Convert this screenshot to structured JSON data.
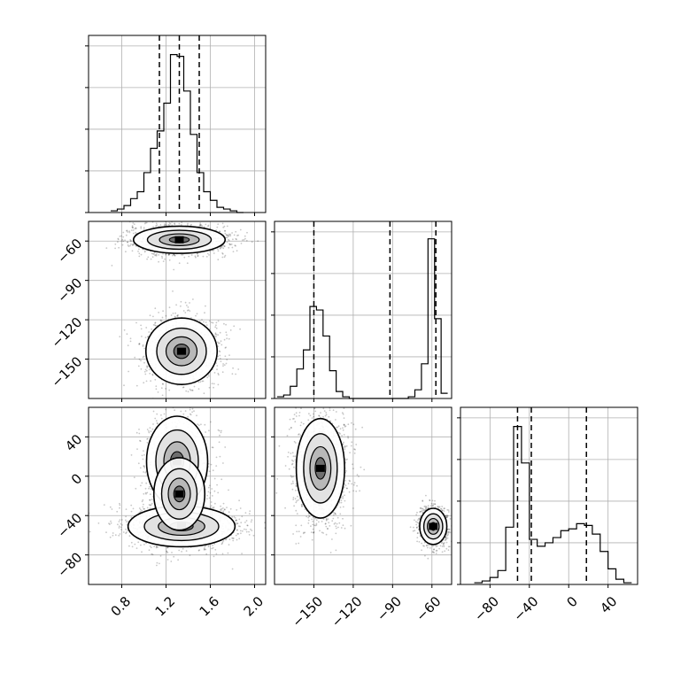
{
  "chart_data": {
    "type": "corner",
    "title": "",
    "parameters": [
      {
        "name": "",
        "range": [
          0.5,
          2.1
        ],
        "ticks": [
          0.8,
          1.2,
          1.6,
          2.0
        ],
        "tick_labels": [
          "0.8",
          "1.2",
          "1.6",
          "2.0"
        ]
      },
      {
        "name": "",
        "range": [
          -180,
          -45
        ],
        "ticks": [
          -150,
          -120,
          -90,
          -60
        ],
        "tick_labels": [
          "−150",
          "−120",
          "−90",
          "−60"
        ]
      },
      {
        "name": "",
        "range": [
          -110,
          70
        ],
        "ticks": [
          -80,
          -40,
          0,
          40
        ],
        "tick_labels": [
          "−80",
          "−40",
          "0",
          "40"
        ]
      }
    ],
    "grid": true,
    "diagonal": [
      {
        "param": 0,
        "quantiles": [
          1.14,
          1.32,
          1.5
        ],
        "bin_edges": [
          0.7,
          0.76,
          0.82,
          0.88,
          0.94,
          1.0,
          1.06,
          1.12,
          1.18,
          1.24,
          1.3,
          1.36,
          1.42,
          1.48,
          1.54,
          1.6,
          1.66,
          1.72,
          1.78,
          1.84,
          1.9
        ],
        "counts": [
          0.01,
          0.02,
          0.04,
          0.08,
          0.12,
          0.23,
          0.37,
          0.47,
          0.63,
          0.91,
          0.9,
          0.7,
          0.45,
          0.23,
          0.12,
          0.07,
          0.03,
          0.02,
          0.01,
          0.0
        ]
      },
      {
        "param": 1,
        "quantiles": [
          -150,
          -92,
          -57
        ],
        "bin_edges": [
          -178,
          -173,
          -168,
          -163,
          -158,
          -153,
          -148,
          -143,
          -138,
          -133,
          -128,
          -123,
          -118,
          -113,
          -108,
          -103,
          -98,
          -93,
          -88,
          -83,
          -78,
          -73,
          -68,
          -63,
          -58,
          -53,
          -48
        ],
        "counts": [
          0.01,
          0.02,
          0.07,
          0.17,
          0.28,
          0.53,
          0.51,
          0.36,
          0.16,
          0.04,
          0.01,
          0,
          0,
          0,
          0,
          0,
          0,
          0,
          0,
          0,
          0.01,
          0.05,
          0.2,
          0.92,
          0.46,
          0.03
        ]
      },
      {
        "param": 2,
        "quantiles": [
          -52,
          -38,
          18
        ],
        "bin_edges": [
          -96,
          -88,
          -80,
          -72,
          -64,
          -56,
          -48,
          -40,
          -32,
          -24,
          -16,
          -8,
          0,
          8,
          16,
          24,
          32,
          40,
          48,
          56,
          64
        ],
        "counts": [
          0.01,
          0.02,
          0.04,
          0.08,
          0.33,
          0.91,
          0.7,
          0.26,
          0.22,
          0.24,
          0.27,
          0.31,
          0.32,
          0.35,
          0.34,
          0.29,
          0.19,
          0.09,
          0.03,
          0.01
        ]
      }
    ],
    "pairs": [
      {
        "x_param": 0,
        "y_param": 1,
        "modes": [
          {
            "mean": [
              1.32,
              -59
            ],
            "sd": [
              0.18,
              4.5
            ],
            "weight": 0.58
          },
          {
            "mean": [
              1.34,
              -144
            ],
            "sd": [
              0.14,
              11
            ],
            "weight": 0.42
          }
        ]
      },
      {
        "x_param": 0,
        "y_param": 2,
        "modes": [
          {
            "mean": [
              1.34,
              -51
            ],
            "sd": [
              0.21,
              9
            ],
            "weight": 0.5
          },
          {
            "mean": [
              1.3,
              15
            ],
            "sd": [
              0.12,
              20
            ],
            "weight": 0.34
          },
          {
            "mean": [
              1.32,
              -18
            ],
            "sd": [
              0.1,
              16
            ],
            "weight": 0.16
          }
        ]
      },
      {
        "x_param": 1,
        "y_param": 2,
        "modes": [
          {
            "mean": [
              -145,
              8
            ],
            "sd": [
              8,
              22
            ],
            "weight": 0.6
          },
          {
            "mean": [
              -59,
              -51
            ],
            "sd": [
              4.5,
              8
            ],
            "weight": 0.4
          }
        ]
      }
    ]
  }
}
